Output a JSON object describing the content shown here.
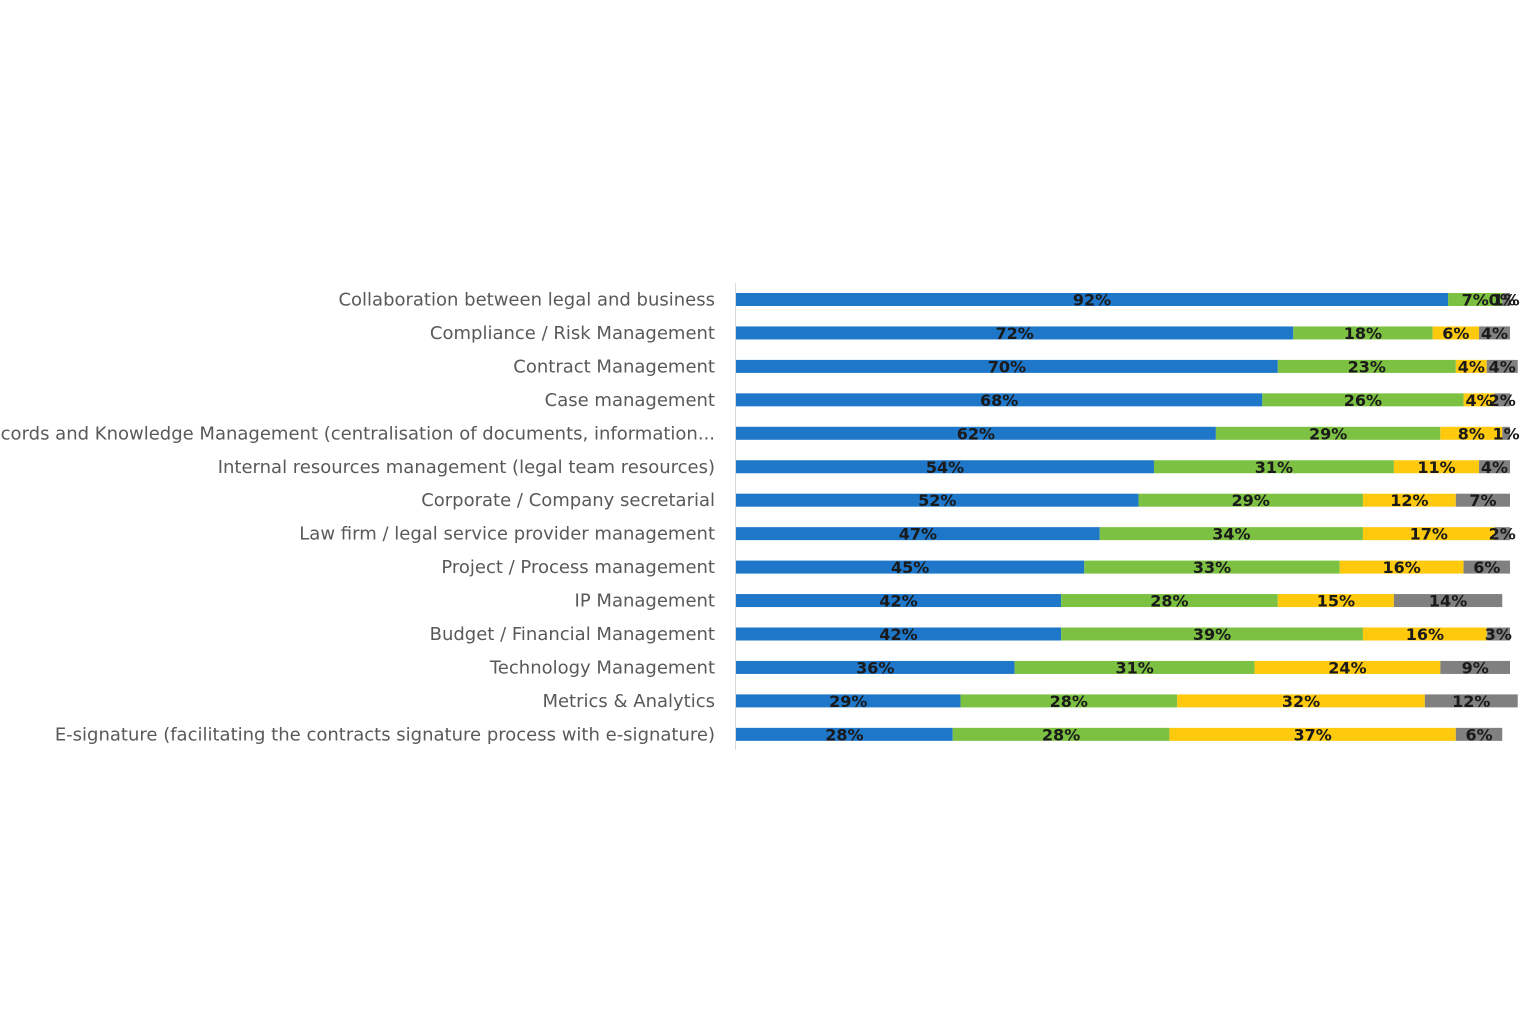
{
  "chart_data": {
    "type": "bar",
    "orientation": "horizontal",
    "stacked": true,
    "title": "",
    "xlabel": "",
    "ylabel": "",
    "xlim": [
      0,
      100
    ],
    "grid": false,
    "legend": "none",
    "categories": [
      "Collaboration between legal and business",
      "Compliance / Risk Management",
      "Contract Management",
      "Case management",
      "Records and Knowledge Management (centralisation of documents, information...",
      "Internal resources management (legal team resources)",
      "Corporate / Company secretarial",
      "Law firm / legal service provider management",
      "Project / Process management",
      "IP Management",
      "Budget / Financial Management",
      "Technology Management",
      "Metrics & Analytics",
      "E-signature (facilitating the contracts signature process with e-signature)"
    ],
    "series": [
      {
        "color": "#1f77c9",
        "values": [
          92,
          72,
          70,
          68,
          62,
          54,
          52,
          47,
          45,
          42,
          42,
          36,
          29,
          28
        ]
      },
      {
        "color": "#7cc142",
        "values": [
          7,
          18,
          23,
          26,
          29,
          31,
          29,
          34,
          33,
          28,
          39,
          31,
          28,
          28
        ]
      },
      {
        "color": "#ffc90e",
        "values": [
          0,
          6,
          4,
          4,
          8,
          11,
          12,
          17,
          16,
          15,
          16,
          24,
          32,
          37
        ]
      },
      {
        "color": "#808080",
        "values": [
          1,
          4,
          4,
          2,
          1,
          4,
          7,
          2,
          6,
          14,
          3,
          9,
          12,
          6
        ]
      }
    ],
    "data_labels": [
      [
        "92%",
        "7%",
        "0%",
        "1%"
      ],
      [
        "72%",
        "18%",
        "6%",
        "4%"
      ],
      [
        "70%",
        "23%",
        "4%",
        "4%"
      ],
      [
        "68%",
        "26%",
        "4%",
        "2%"
      ],
      [
        "62%",
        "29%",
        "8%",
        "1%"
      ],
      [
        "54%",
        "31%",
        "11%",
        "4%"
      ],
      [
        "52%",
        "29%",
        "12%",
        "7%"
      ],
      [
        "47%",
        "34%",
        "17%",
        "2%"
      ],
      [
        "45%",
        "33%",
        "16%",
        "6%"
      ],
      [
        "42%",
        "28%",
        "15%",
        "14%"
      ],
      [
        "42%",
        "39%",
        "16%",
        "3%"
      ],
      [
        "36%",
        "31%",
        "24%",
        "9%"
      ],
      [
        "29%",
        "28%",
        "32%",
        "12%"
      ],
      [
        "28%",
        "28%",
        "37%",
        "6%"
      ]
    ]
  }
}
